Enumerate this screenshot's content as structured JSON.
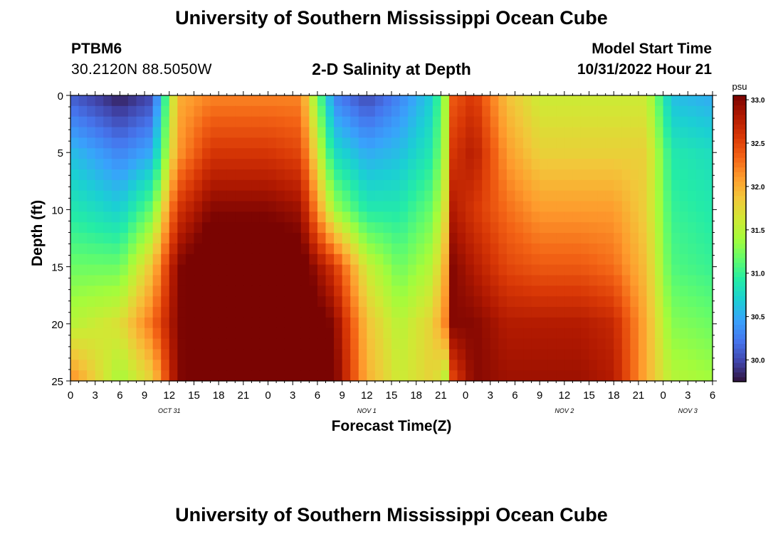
{
  "page": {
    "title": "University of Southern Mississippi Ocean Cube",
    "footer_title": "University of Southern Mississippi Ocean Cube",
    "station": "PTBM6",
    "coords": "30.2120N  88.5050W",
    "subtitle": "2-D Salinity at Depth",
    "model_start_label": "Model Start Time",
    "model_start_value": "10/31/2022 Hour 21"
  },
  "chart_data": {
    "type": "heatmap",
    "title": "2-D Salinity at Depth",
    "xlabel": "Forecast Time(Z)",
    "ylabel": "Depth (ft)",
    "x_range_hours": [
      0,
      78
    ],
    "y_range_ft": [
      0,
      25
    ],
    "x_ticks": [
      "0",
      "3",
      "6",
      "9",
      "12",
      "15",
      "18",
      "21",
      "0",
      "3",
      "6",
      "9",
      "12",
      "15",
      "18",
      "21",
      "0",
      "3",
      "6",
      "9",
      "12",
      "15",
      "18",
      "21",
      "0",
      "3",
      "6"
    ],
    "y_ticks": [
      "0",
      "5",
      "10",
      "15",
      "20",
      "25"
    ],
    "day_labels": [
      {
        "label": "OCT 31",
        "hour": 12
      },
      {
        "label": "NOV 1",
        "hour": 36
      },
      {
        "label": "NOV 2",
        "hour": 60
      },
      {
        "label": "NOV 3",
        "hour": 75
      }
    ],
    "colorbar": {
      "unit": "psu",
      "min": 29.75,
      "max": 33.05,
      "ticks": [
        "33.0",
        "32.5",
        "32.0",
        "31.5",
        "31.0",
        "30.5",
        "30.0"
      ],
      "colors": [
        "#30123b",
        "#4145ab",
        "#4675ed",
        "#39a2fc",
        "#1bcfd4",
        "#24eca6",
        "#61fc6c",
        "#a4fc3b",
        "#d1e834",
        "#f3c63a",
        "#fe9b2d",
        "#f36315",
        "#d93806",
        "#b11901",
        "#7a0402"
      ]
    },
    "depth_ft": [
      0,
      5,
      10,
      15,
      20,
      25
    ],
    "time_hours": [
      0,
      6,
      10,
      13,
      17,
      24,
      28,
      32,
      36,
      40,
      44,
      45.5,
      46.5,
      49,
      53,
      57,
      62,
      66,
      70,
      73,
      78
    ],
    "salinity_psu": [
      [
        30.1,
        29.8,
        30.0,
        32.0,
        32.2,
        32.2,
        32.2,
        30.3,
        30.0,
        30.3,
        30.7,
        31.4,
        32.4,
        32.6,
        31.9,
        31.6,
        31.6,
        31.6,
        31.6,
        30.6,
        30.5
      ],
      [
        30.6,
        30.3,
        30.5,
        32.1,
        32.6,
        32.6,
        32.5,
        30.8,
        30.5,
        30.6,
        30.9,
        31.5,
        32.6,
        32.8,
        32.1,
        31.8,
        31.8,
        31.8,
        31.8,
        30.9,
        30.8
      ],
      [
        30.9,
        30.7,
        31.2,
        32.6,
        33.0,
        33.0,
        32.9,
        31.4,
        30.9,
        30.9,
        31.2,
        31.7,
        32.8,
        32.6,
        32.3,
        32.1,
        32.1,
        32.1,
        31.8,
        31.0,
        30.9
      ],
      [
        31.2,
        31.2,
        31.9,
        33.0,
        33.3,
        33.3,
        33.2,
        32.6,
        31.6,
        31.2,
        31.5,
        32.0,
        33.0,
        32.8,
        32.5,
        32.4,
        32.4,
        32.3,
        31.9,
        31.1,
        31.0
      ],
      [
        31.5,
        31.7,
        32.3,
        33.0,
        33.3,
        33.3,
        33.3,
        33.0,
        31.9,
        31.5,
        31.8,
        32.2,
        33.0,
        33.0,
        32.8,
        32.8,
        32.8,
        32.7,
        32.0,
        31.3,
        31.2
      ],
      [
        32.2,
        31.4,
        31.8,
        33.0,
        33.2,
        33.3,
        33.3,
        33.1,
        32.0,
        31.6,
        31.8,
        31.5,
        32.5,
        33.0,
        32.9,
        32.9,
        32.9,
        32.8,
        32.0,
        31.5,
        31.4
      ]
    ]
  }
}
